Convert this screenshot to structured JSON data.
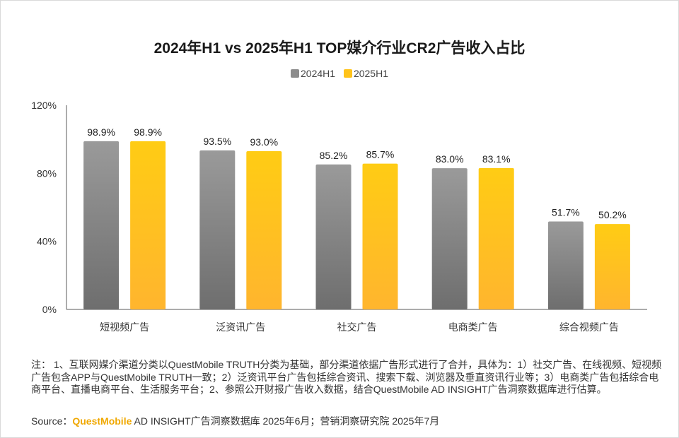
{
  "colors": {
    "series_2024": "#8c8c8c",
    "series_2025": "#ffc31a",
    "brand": "#f0a800",
    "axis": "#595959"
  },
  "chart_data": {
    "type": "bar",
    "title": "2024年H1 vs 2025年H1 TOP媒介行业CR2广告收入占比",
    "categories": [
      "短视频广告",
      "泛资讯广告",
      "社交广告",
      "电商类广告",
      "综合视频广告"
    ],
    "series": [
      {
        "name": "2024H1",
        "values": [
          98.9,
          93.5,
          85.2,
          83.0,
          51.7
        ],
        "labels": [
          "98.9%",
          "93.5%",
          "85.2%",
          "83.0%",
          "51.7%"
        ]
      },
      {
        "name": "2025H1",
        "values": [
          98.9,
          93.0,
          85.7,
          83.1,
          50.2
        ],
        "labels": [
          "98.9%",
          "93.0%",
          "85.7%",
          "83.1%",
          "50.2%"
        ]
      }
    ],
    "ylim": [
      0,
      120
    ],
    "yticks": [
      0,
      40,
      80,
      120
    ],
    "ytick_labels": [
      "0%",
      "40%",
      "80%",
      "120%"
    ],
    "legend_position": "top-center",
    "grid": false
  },
  "notes": {
    "text": "注：  1、互联网媒介渠道分类以QuestMobile TRUTH分类为基础，部分渠道依据广告形式进行了合并，具体为：1）社交广告、在线视频、短视频广告包含APP与QuestMobile TRUTH一致；2）泛资讯平台广告包括综合资讯、搜索下载、浏览器及垂直资讯行业等；3）电商类广告包括综合电商平台、直播电商平台、生活服务平台；2、参照公开财报广告收入数据，结合QuestMobile AD INSIGHT广告洞察数据库进行估算。"
  },
  "source": {
    "prefix": "Source：",
    "brand": "QuestMobile",
    "rest": " AD INSIGHT广告洞察数据库 2025年6月；营销洞察研究院 2025年7月"
  }
}
